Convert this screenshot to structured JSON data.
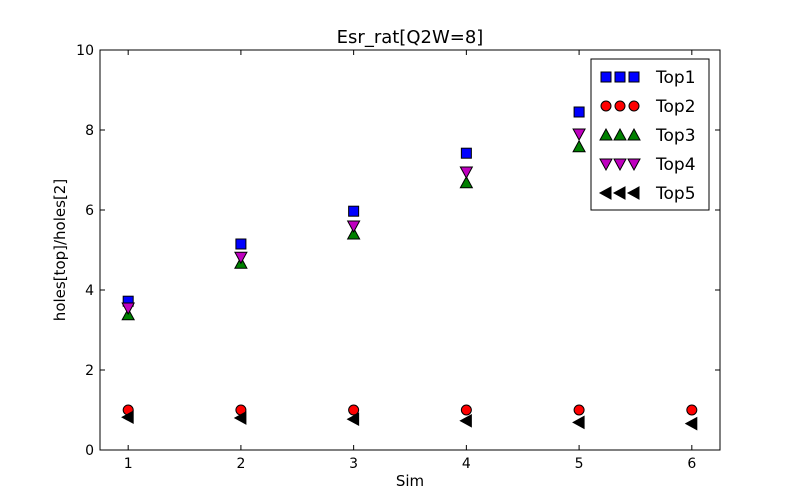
{
  "chart_data": {
    "type": "scatter",
    "title": "Esr_rat[Q2W=8]",
    "xlabel": "Sim",
    "ylabel": "holes[top]/holes[2]",
    "xlim": [
      0.75,
      6.25
    ],
    "ylim": [
      0,
      10
    ],
    "xticks": [
      "1",
      "2",
      "3",
      "4",
      "5",
      "6"
    ],
    "yticks": [
      "0",
      "2",
      "4",
      "6",
      "8",
      "10"
    ],
    "grid": false,
    "legend_position": "top-right",
    "series": [
      {
        "name": "Top1",
        "marker": "square",
        "color": "#0000ff",
        "x": [
          1,
          2,
          3,
          4,
          5
        ],
        "y": [
          3.72,
          5.15,
          5.97,
          7.42,
          8.45
        ]
      },
      {
        "name": "Top2",
        "marker": "circle",
        "color": "#ff0000",
        "x": [
          1,
          2,
          3,
          4,
          5,
          6
        ],
        "y": [
          1.0,
          1.0,
          1.0,
          1.0,
          1.0,
          1.0
        ]
      },
      {
        "name": "Top3",
        "marker": "triangle-up",
        "color": "#008000",
        "x": [
          1,
          2,
          3,
          4,
          5
        ],
        "y": [
          3.38,
          4.67,
          5.4,
          6.68,
          7.58
        ]
      },
      {
        "name": "Top4",
        "marker": "triangle-down",
        "color": "#bf00bf",
        "x": [
          1,
          2,
          3,
          4,
          5
        ],
        "y": [
          3.55,
          4.82,
          5.6,
          6.95,
          7.9
        ]
      },
      {
        "name": "Top5",
        "marker": "triangle-left",
        "color": "#000000",
        "x": [
          1,
          2,
          3,
          4,
          5,
          6
        ],
        "y": [
          0.82,
          0.8,
          0.77,
          0.73,
          0.69,
          0.66
        ]
      }
    ]
  }
}
